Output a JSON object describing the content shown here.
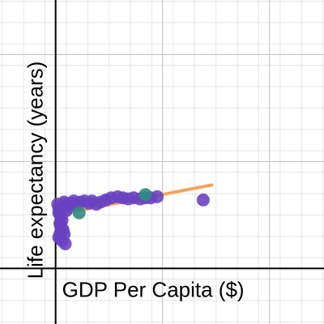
{
  "colors": {
    "background": "#ffffff",
    "grid_minor": "#e6e6e6",
    "grid_major": "#bdbdbd",
    "axis": "#000000",
    "points": "#6a42c1",
    "points_alt": "#2d8c7d",
    "trend": "#f4a460"
  },
  "chart_data": {
    "type": "scatter",
    "title": "",
    "xlabel": "GDP Per Capita ($)",
    "ylabel": "Life expectancy (years)",
    "xlim": [
      -5.2,
      25.1
    ],
    "ylim": [
      -5.2,
      25.1
    ],
    "grid": true,
    "legend": "none",
    "series": [
      {
        "points": [
          [
            0.2,
            6.0
          ],
          [
            0.3,
            5.6
          ],
          [
            0.4,
            5.2
          ],
          [
            0.5,
            4.9
          ],
          [
            0.6,
            4.5
          ],
          [
            0.4,
            4.2
          ],
          [
            0.5,
            3.9
          ],
          [
            0.7,
            3.6
          ],
          [
            0.4,
            3.2
          ],
          [
            0.3,
            2.9
          ],
          [
            0.6,
            2.6
          ],
          [
            0.9,
            2.3
          ],
          [
            0.3,
            5.2
          ],
          [
            0.8,
            6.2
          ],
          [
            1.1,
            6.0
          ],
          [
            1.4,
            6.1
          ],
          [
            1.7,
            6.3
          ],
          [
            2.0,
            6.0
          ],
          [
            2.3,
            6.2
          ],
          [
            2.7,
            6.3
          ],
          [
            3.1,
            6.1
          ],
          [
            3.4,
            6.3
          ],
          [
            3.8,
            6.0
          ],
          [
            4.2,
            6.2
          ],
          [
            4.7,
            6.4
          ],
          [
            5.2,
            6.6
          ],
          [
            5.8,
            6.7
          ],
          [
            6.3,
            6.6
          ],
          [
            6.8,
            6.5
          ],
          [
            7.3,
            6.6
          ],
          [
            7.9,
            6.5
          ],
          [
            8.4,
            6.6
          ],
          [
            8.9,
            6.6
          ],
          [
            9.5,
            6.7
          ],
          [
            1.0,
            5.4
          ],
          [
            0.8,
            3.2
          ],
          [
            1.2,
            5.8
          ],
          [
            13.8,
            6.4
          ]
        ]
      },
      {
        "points": [
          [
            2.2,
            5.2
          ],
          [
            8.4,
            6.9
          ]
        ]
      }
    ],
    "trendline": {
      "x": [
        0.0,
        14.6
      ],
      "y": [
        5.0,
        7.8
      ]
    }
  }
}
